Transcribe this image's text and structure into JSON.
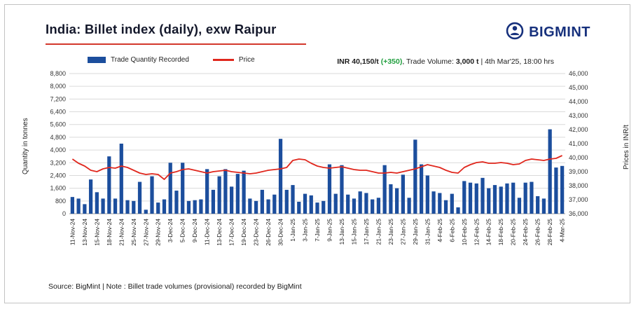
{
  "header": {
    "title": "India: Billet index (daily), exw Raipur",
    "brand": "BIGMINT"
  },
  "legend": [
    {
      "label": "Trade Quantity Recorded",
      "color": "#1c4e9d",
      "type": "bar"
    },
    {
      "label": "Price",
      "color": "#e0271d",
      "type": "line"
    }
  ],
  "info": {
    "price": "INR 40,150/t",
    "change": "(+350)",
    "rest1": ", Trade Volume: ",
    "volume": "3,000 t",
    "rest2": " | 4th Mar'25, 18:00 hrs"
  },
  "footer": {
    "note": "Source: BigMint | Note : Billet trade volumes (provisional) recorded by BigMint"
  },
  "chart_data": {
    "type": "combo-bar-line",
    "title": "India: Billet index (daily), exw Raipur",
    "label_every": 2,
    "tick_labels": [
      "11-Nov-24",
      "13-Nov-24",
      "15-Nov-24",
      "18-Nov-24",
      "21-Nov-24",
      "25-Nov-24",
      "27-Nov-24",
      "29-Nov-24",
      "3-Dec-24",
      "5-Dec-24",
      "9-Dec-24",
      "11-Dec-24",
      "13-Dec-24",
      "17-Dec-24",
      "19-Dec-24",
      "23-Dec-24",
      "26-Dec-24",
      "30-Dec-24",
      "1-Jan-25",
      "3-Jan-25",
      "7-Jan-25",
      "9-Jan-25",
      "13-Jan-25",
      "15-Jan-25",
      "17-Jan-25",
      "21-Jan-25",
      "23-Jan-25",
      "27-Jan-25",
      "29-Jan-25",
      "31-Jan-25",
      "4-Feb-25",
      "6-Feb-25",
      "10-Feb-25",
      "12-Feb-25",
      "14-Feb-25",
      "18-Feb-25",
      "20-Feb-25",
      "24-Feb-25",
      "26-Feb-25",
      "28-Feb-25",
      "4-Mar-25"
    ],
    "left_axis": {
      "title": "Quantity in tonnes",
      "min": 0,
      "max": 8800,
      "step": 800,
      "ticks": [
        "8,800",
        "8,000",
        "7,200",
        "6,400",
        "5,600",
        "4,800",
        "4,000",
        "3,200",
        "2,400",
        "1,600",
        "800",
        "0"
      ]
    },
    "right_axis": {
      "title": "Prices in INR/t",
      "min": 36000,
      "max": 46000,
      "step": 1000,
      "ticks": [
        "46,000",
        "45,000",
        "44,000",
        "43,000",
        "42,000",
        "41,000",
        "40,000",
        "39,000",
        "38,000",
        "37,000",
        "36,000"
      ]
    },
    "series": [
      {
        "name": "Trade Quantity Recorded",
        "type": "bar",
        "axis": "left",
        "color": "#1c4e9d",
        "values": [
          1050,
          950,
          600,
          2150,
          1350,
          950,
          3600,
          950,
          4400,
          850,
          800,
          2000,
          250,
          2350,
          700,
          900,
          3200,
          1450,
          3200,
          800,
          850,
          900,
          2800,
          1500,
          2350,
          2800,
          1700,
          2500,
          2700,
          950,
          800,
          1500,
          900,
          1200,
          4700,
          1500,
          1800,
          750,
          1250,
          1150,
          700,
          800,
          3100,
          1250,
          3050,
          1200,
          950,
          1400,
          1300,
          900,
          1000,
          3050,
          1850,
          1600,
          2450,
          1000,
          4650,
          3100,
          2400,
          1400,
          1300,
          850,
          1250,
          400,
          2050,
          1950,
          1900,
          2250,
          1600,
          1800,
          1700,
          1900,
          1950,
          1000,
          1950,
          2000,
          1100,
          950,
          5300,
          2900,
          3000
        ]
      },
      {
        "name": "Price",
        "type": "line",
        "axis": "right",
        "color": "#e0271d",
        "values": [
          39900,
          39600,
          39400,
          39100,
          39000,
          39200,
          39300,
          39250,
          39400,
          39300,
          39100,
          38900,
          38800,
          38850,
          38800,
          38450,
          38900,
          39000,
          39150,
          39200,
          39100,
          39000,
          38900,
          39000,
          39050,
          39100,
          39000,
          38950,
          38900,
          38850,
          38900,
          39000,
          39100,
          39150,
          39200,
          39300,
          39800,
          39900,
          39850,
          39600,
          39400,
          39300,
          39250,
          39300,
          39350,
          39250,
          39150,
          39100,
          39100,
          39000,
          38900,
          38900,
          38950,
          38900,
          39000,
          39100,
          39200,
          39350,
          39500,
          39400,
          39300,
          39100,
          38950,
          38900,
          39300,
          39500,
          39650,
          39700,
          39600,
          39600,
          39650,
          39600,
          39500,
          39550,
          39800,
          39900,
          39850,
          39800,
          39900,
          39950,
          40150
        ]
      }
    ]
  }
}
